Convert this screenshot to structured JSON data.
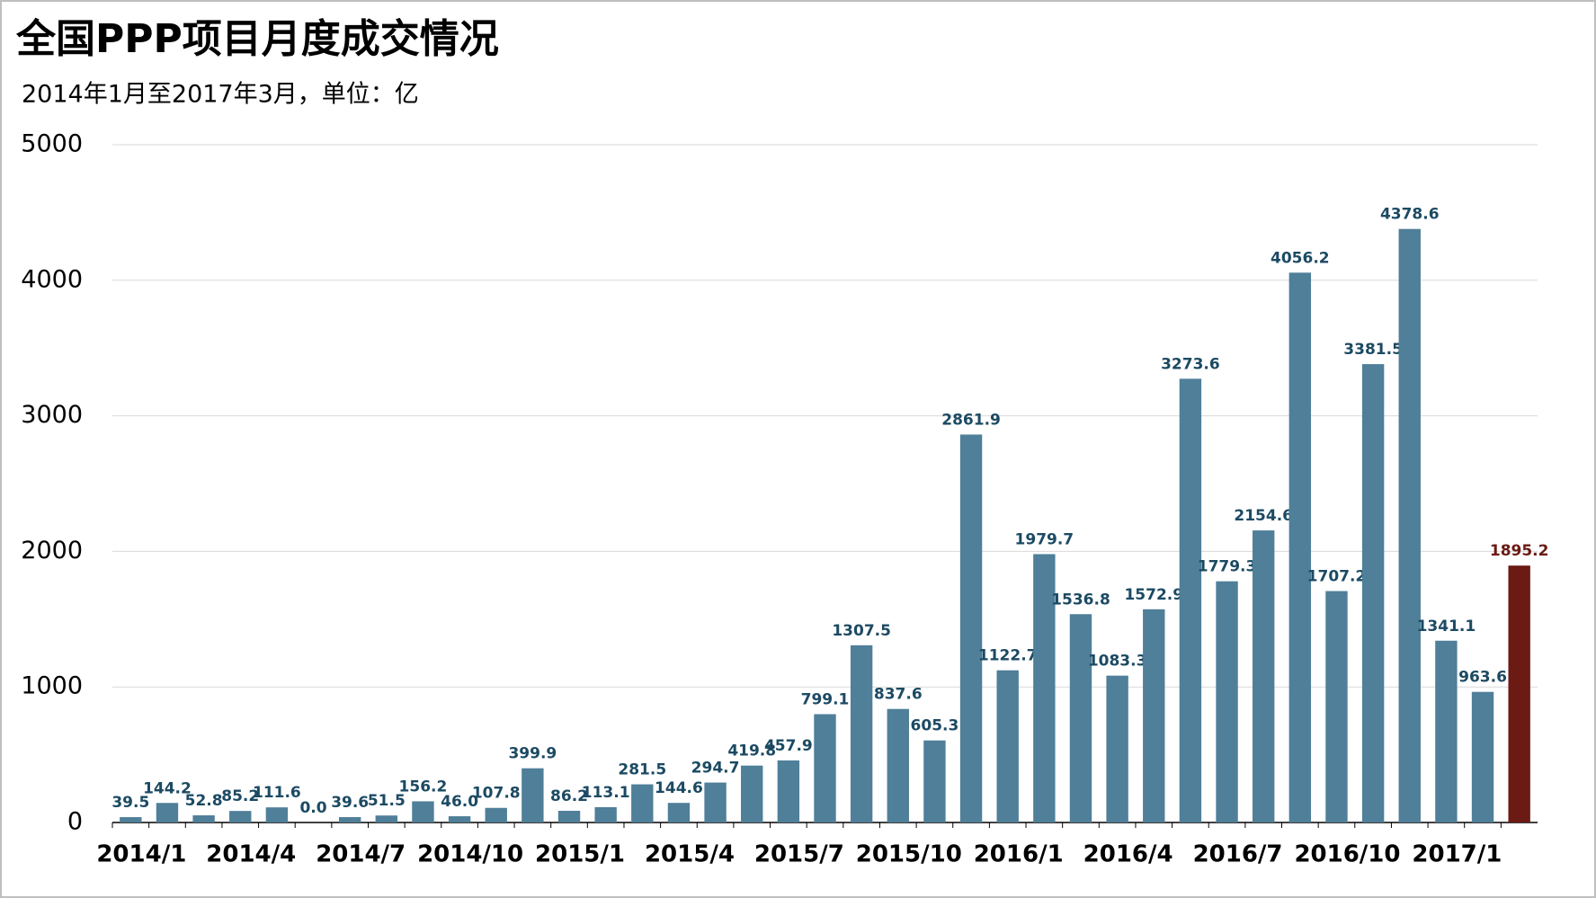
{
  "chart_data": {
    "type": "bar",
    "title": "全国PPP项目月度成交情况",
    "subtitle": "2014年1月至2017年3月，单位：亿",
    "categories": [
      "2014/1",
      null,
      null,
      "2014/4",
      null,
      null,
      "2014/7",
      null,
      null,
      "2014/10",
      null,
      null,
      "2015/1",
      null,
      null,
      "2015/4",
      null,
      null,
      "2015/7",
      null,
      null,
      "2015/10",
      null,
      null,
      "2016/1",
      null,
      null,
      "2016/4",
      null,
      null,
      "2016/7",
      null,
      null,
      "2016/10",
      null,
      null,
      "2017/1",
      null,
      null
    ],
    "values": [
      39.5,
      144.2,
      52.8,
      85.2,
      111.6,
      0.0,
      39.6,
      51.5,
      156.2,
      46.0,
      107.8,
      399.9,
      86.2,
      113.1,
      281.5,
      144.6,
      294.7,
      419.8,
      457.9,
      799.1,
      1307.5,
      837.6,
      605.3,
      2861.9,
      1122.7,
      1979.7,
      1536.8,
      1083.3,
      1572.9,
      3273.6,
      1779.3,
      2154.6,
      4056.2,
      1707.2,
      3381.5,
      4378.6,
      1341.1,
      963.6,
      1895.2
    ],
    "value_labels": [
      "39.5",
      "144.2",
      "52.8",
      "85.2",
      "111.6",
      "0.0",
      "39.6",
      "51.5",
      "156.2",
      "46.0",
      "107.8",
      "399.9",
      "86.2",
      "113.1",
      "281.5",
      "144.6",
      "294.7",
      "419.8",
      "457.9",
      "799.1",
      "1307.5",
      "837.6",
      "605.3",
      "2861.9",
      "1122.7",
      "1979.7",
      "1536.8",
      "1083.3",
      "1572.9",
      "3273.6",
      "1779.3",
      "2154.6",
      "4056.2",
      "1707.2",
      "3381.5",
      "4378.6",
      "1341.1",
      "963.6",
      "1895.2"
    ],
    "colors": [
      "#4f7f99",
      "#4f7f99",
      "#4f7f99",
      "#4f7f99",
      "#4f7f99",
      "#4f7f99",
      "#4f7f99",
      "#4f7f99",
      "#4f7f99",
      "#4f7f99",
      "#4f7f99",
      "#4f7f99",
      "#4f7f99",
      "#4f7f99",
      "#4f7f99",
      "#4f7f99",
      "#4f7f99",
      "#4f7f99",
      "#4f7f99",
      "#4f7f99",
      "#4f7f99",
      "#4f7f99",
      "#4f7f99",
      "#4f7f99",
      "#4f7f99",
      "#4f7f99",
      "#4f7f99",
      "#4f7f99",
      "#4f7f99",
      "#4f7f99",
      "#4f7f99",
      "#4f7f99",
      "#4f7f99",
      "#4f7f99",
      "#4f7f99",
      "#4f7f99",
      "#4f7f99",
      "#4f7f99",
      "#6b1a14"
    ],
    "ylim": [
      0,
      5000
    ],
    "yticks": [
      0,
      1000,
      2000,
      3000,
      4000,
      5000
    ],
    "grid": true
  }
}
